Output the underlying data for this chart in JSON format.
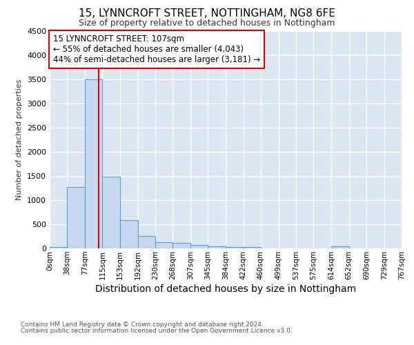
{
  "title1": "15, LYNNCROFT STREET, NOTTINGHAM, NG8 6FE",
  "title2": "Size of property relative to detached houses in Nottingham",
  "xlabel": "Distribution of detached houses by size in Nottingham",
  "ylabel": "Number of detached properties",
  "bin_edges": [
    0,
    38,
    77,
    115,
    153,
    192,
    230,
    268,
    307,
    345,
    384,
    422,
    460,
    499,
    537,
    575,
    614,
    652,
    690,
    729,
    767
  ],
  "bar_heights": [
    30,
    1270,
    3500,
    1480,
    580,
    260,
    135,
    120,
    70,
    50,
    30,
    30,
    0,
    0,
    0,
    0,
    40,
    0,
    0,
    0
  ],
  "bar_color": "#c6d9f0",
  "bar_edgecolor": "#5b9bd5",
  "property_size": 107,
  "vline_color": "#cc0000",
  "annotation_line1": "15 LYNNCROFT STREET: 107sqm",
  "annotation_line2": "← 55% of detached houses are smaller (4,043)",
  "annotation_line3": "44% of semi-detached houses are larger (3,181) →",
  "annotation_box_facecolor": "#ffffff",
  "annotation_box_edgecolor": "#cc0000",
  "ylim": [
    0,
    4500
  ],
  "yticks": [
    0,
    500,
    1000,
    1500,
    2000,
    2500,
    3000,
    3500,
    4000,
    4500
  ],
  "plot_bg_color": "#dce6f1",
  "grid_color": "#ffffff",
  "tick_labels": [
    "0sqm",
    "38sqm",
    "77sqm",
    "115sqm",
    "153sqm",
    "192sqm",
    "230sqm",
    "268sqm",
    "307sqm",
    "345sqm",
    "384sqm",
    "422sqm",
    "460sqm",
    "499sqm",
    "537sqm",
    "575sqm",
    "614sqm",
    "652sqm",
    "690sqm",
    "729sqm",
    "767sqm"
  ],
  "footer1": "Contains HM Land Registry data © Crown copyright and database right 2024.",
  "footer2": "Contains public sector information licensed under the Open Government Licence v3.0.",
  "title1_fontsize": 11,
  "title2_fontsize": 9,
  "xlabel_fontsize": 10,
  "ylabel_fontsize": 8,
  "ytick_fontsize": 8,
  "xtick_fontsize": 7.5,
  "ann_fontsize": 8.5,
  "footer_fontsize": 6.5
}
